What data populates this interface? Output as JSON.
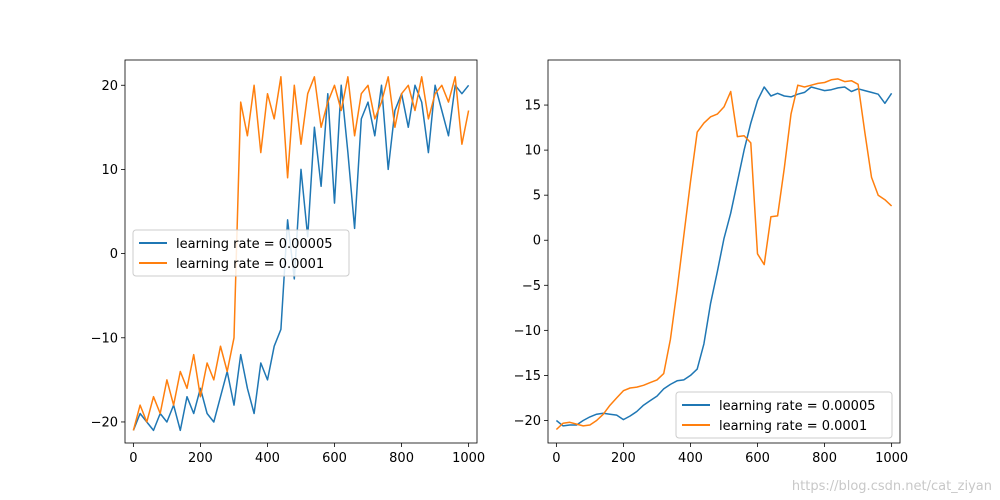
{
  "chart_data": [
    {
      "type": "line",
      "title": "",
      "xlabel": "",
      "ylabel": "",
      "xlim": [
        -25,
        1025
      ],
      "ylim": [
        -22.5,
        23
      ],
      "xticks": [
        0,
        200,
        400,
        600,
        800,
        1000
      ],
      "yticks": [
        -20,
        -10,
        0,
        10,
        20
      ],
      "xtick_labels": [
        "0",
        "200",
        "400",
        "600",
        "800",
        "1000"
      ],
      "ytick_labels": [
        "−20",
        "−10",
        "0",
        "10",
        "20"
      ],
      "legend": {
        "placement": "center-left",
        "entries": [
          "learning rate = 0.00005",
          "learning rate = 0.0001"
        ]
      },
      "grid": false,
      "series": [
        {
          "name": "learning rate = 0.00005",
          "color": "#1f77b4",
          "x": [
            0,
            20,
            40,
            60,
            80,
            100,
            120,
            140,
            160,
            180,
            200,
            220,
            240,
            260,
            280,
            300,
            320,
            340,
            360,
            380,
            400,
            420,
            440,
            460,
            480,
            500,
            520,
            540,
            560,
            580,
            600,
            620,
            640,
            660,
            680,
            700,
            720,
            740,
            760,
            780,
            800,
            820,
            840,
            860,
            880,
            900,
            920,
            940,
            960,
            980,
            1000
          ],
          "values": [
            -21,
            -19,
            -20,
            -21,
            -19,
            -20,
            -18,
            -21,
            -17,
            -19,
            -16,
            -19,
            -20,
            -17,
            -14,
            -18,
            -12,
            -16,
            -19,
            -13,
            -15,
            -11,
            -9,
            4,
            -3,
            10,
            2,
            15,
            8,
            19,
            6,
            20,
            12,
            3,
            16,
            18,
            14,
            20,
            10,
            17,
            19,
            15,
            20,
            18,
            12,
            20,
            17,
            14,
            20,
            19,
            20
          ]
        },
        {
          "name": "learning rate = 0.0001",
          "color": "#ff7f0e",
          "x": [
            0,
            20,
            40,
            60,
            80,
            100,
            120,
            140,
            160,
            180,
            200,
            220,
            240,
            260,
            280,
            300,
            320,
            340,
            360,
            380,
            400,
            420,
            440,
            460,
            480,
            500,
            520,
            540,
            560,
            580,
            600,
            620,
            640,
            660,
            680,
            700,
            720,
            740,
            760,
            780,
            800,
            820,
            840,
            860,
            880,
            900,
            920,
            940,
            960,
            980,
            1000
          ],
          "values": [
            -21,
            -18,
            -20,
            -17,
            -19,
            -15,
            -18,
            -14,
            -16,
            -12,
            -17,
            -13,
            -15,
            -11,
            -14,
            -10,
            18,
            14,
            20,
            12,
            19,
            16,
            21,
            9,
            20,
            13,
            19,
            21,
            15,
            18,
            20,
            17,
            21,
            14,
            19,
            20,
            16,
            18,
            21,
            15,
            19,
            20,
            17,
            21,
            16,
            19,
            20,
            18,
            21,
            13,
            17
          ]
        }
      ]
    },
    {
      "type": "line",
      "title": "",
      "xlabel": "",
      "ylabel": "",
      "xlim": [
        -25,
        1025
      ],
      "ylim": [
        -22.5,
        20
      ],
      "xticks": [
        0,
        200,
        400,
        600,
        800,
        1000
      ],
      "yticks": [
        -20,
        -15,
        -10,
        -5,
        0,
        5,
        10,
        15
      ],
      "xtick_labels": [
        "0",
        "200",
        "400",
        "600",
        "800",
        "1000"
      ],
      "ytick_labels": [
        "−20",
        "−15",
        "−10",
        "−5",
        "0",
        "5",
        "10",
        "15"
      ],
      "legend": {
        "placement": "lower-right",
        "entries": [
          "learning rate = 0.00005",
          "learning rate = 0.0001"
        ]
      },
      "grid": false,
      "series": [
        {
          "name": "learning rate = 0.00005",
          "color": "#1f77b4",
          "x": [
            0,
            20,
            40,
            60,
            80,
            100,
            120,
            140,
            160,
            180,
            200,
            220,
            240,
            260,
            280,
            300,
            320,
            340,
            360,
            380,
            400,
            420,
            440,
            460,
            480,
            500,
            520,
            540,
            560,
            580,
            600,
            620,
            640,
            660,
            680,
            700,
            720,
            740,
            760,
            780,
            800,
            820,
            840,
            860,
            880,
            900,
            920,
            940,
            960,
            980,
            1000
          ],
          "values": [
            -20,
            -20.6,
            -20.5,
            -20.5,
            -20,
            -19.6,
            -19.3,
            -19.2,
            -19.3,
            -19.4,
            -19.9,
            -19.5,
            -19,
            -18.3,
            -17.8,
            -17.3,
            -16.5,
            -16,
            -15.6,
            -15.5,
            -15,
            -14.3,
            -11.5,
            -7,
            -3.5,
            0.2,
            3,
            6.5,
            10,
            13,
            15.5,
            17,
            16,
            16.3,
            16,
            15.9,
            16.2,
            16.4,
            17,
            16.8,
            16.6,
            16.7,
            16.9,
            17,
            16.5,
            16.8,
            16.6,
            16.4,
            16.2,
            15.2,
            16.3
          ]
        },
        {
          "name": "learning rate = 0.0001",
          "color": "#ff7f0e",
          "x": [
            0,
            20,
            40,
            60,
            80,
            100,
            120,
            140,
            160,
            180,
            200,
            220,
            240,
            260,
            280,
            300,
            320,
            340,
            360,
            380,
            400,
            420,
            440,
            460,
            480,
            500,
            520,
            540,
            560,
            580,
            600,
            620,
            640,
            660,
            680,
            700,
            720,
            740,
            760,
            780,
            800,
            820,
            840,
            860,
            880,
            900,
            920,
            940,
            960,
            980,
            1000
          ],
          "values": [
            -21,
            -20.3,
            -20.2,
            -20.4,
            -20.6,
            -20.5,
            -20,
            -19.3,
            -18.3,
            -17.5,
            -16.7,
            -16.4,
            -16.3,
            -16.1,
            -15.8,
            -15.5,
            -14.8,
            -11,
            -5.5,
            0.5,
            6.5,
            12,
            13,
            13.7,
            14,
            14.8,
            16.5,
            11.5,
            11.6,
            10.8,
            -1.5,
            -2.7,
            2.6,
            2.7,
            8,
            14,
            17.2,
            17,
            17.2,
            17.4,
            17.5,
            17.8,
            17.9,
            17.6,
            17.7,
            17.3,
            12,
            7,
            5,
            4.5,
            3.8
          ]
        }
      ]
    }
  ],
  "watermark": "https://blog.csdn.net/cat_ziyan"
}
